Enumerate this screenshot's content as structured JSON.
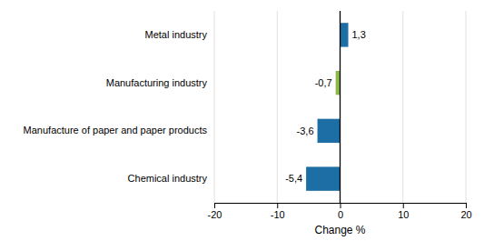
{
  "chart_data": {
    "type": "bar",
    "orientation": "horizontal",
    "categories": [
      "Metal industry",
      "Manufacturing industry",
      "Manufacture of paper and paper products",
      "Chemical industry"
    ],
    "values": [
      1.3,
      -0.7,
      -3.6,
      -5.4
    ],
    "value_labels": [
      "1,3",
      "-0,7",
      "-3,6",
      "-5,4"
    ],
    "colors": [
      "#1c6ea4",
      "#8db84a",
      "#1c6ea4",
      "#1c6ea4"
    ],
    "xlabel": "Change %",
    "xlim": [
      -20,
      20
    ],
    "xticks": [
      -20,
      -10,
      0,
      10,
      20
    ],
    "grid": true,
    "data_labels": true
  }
}
